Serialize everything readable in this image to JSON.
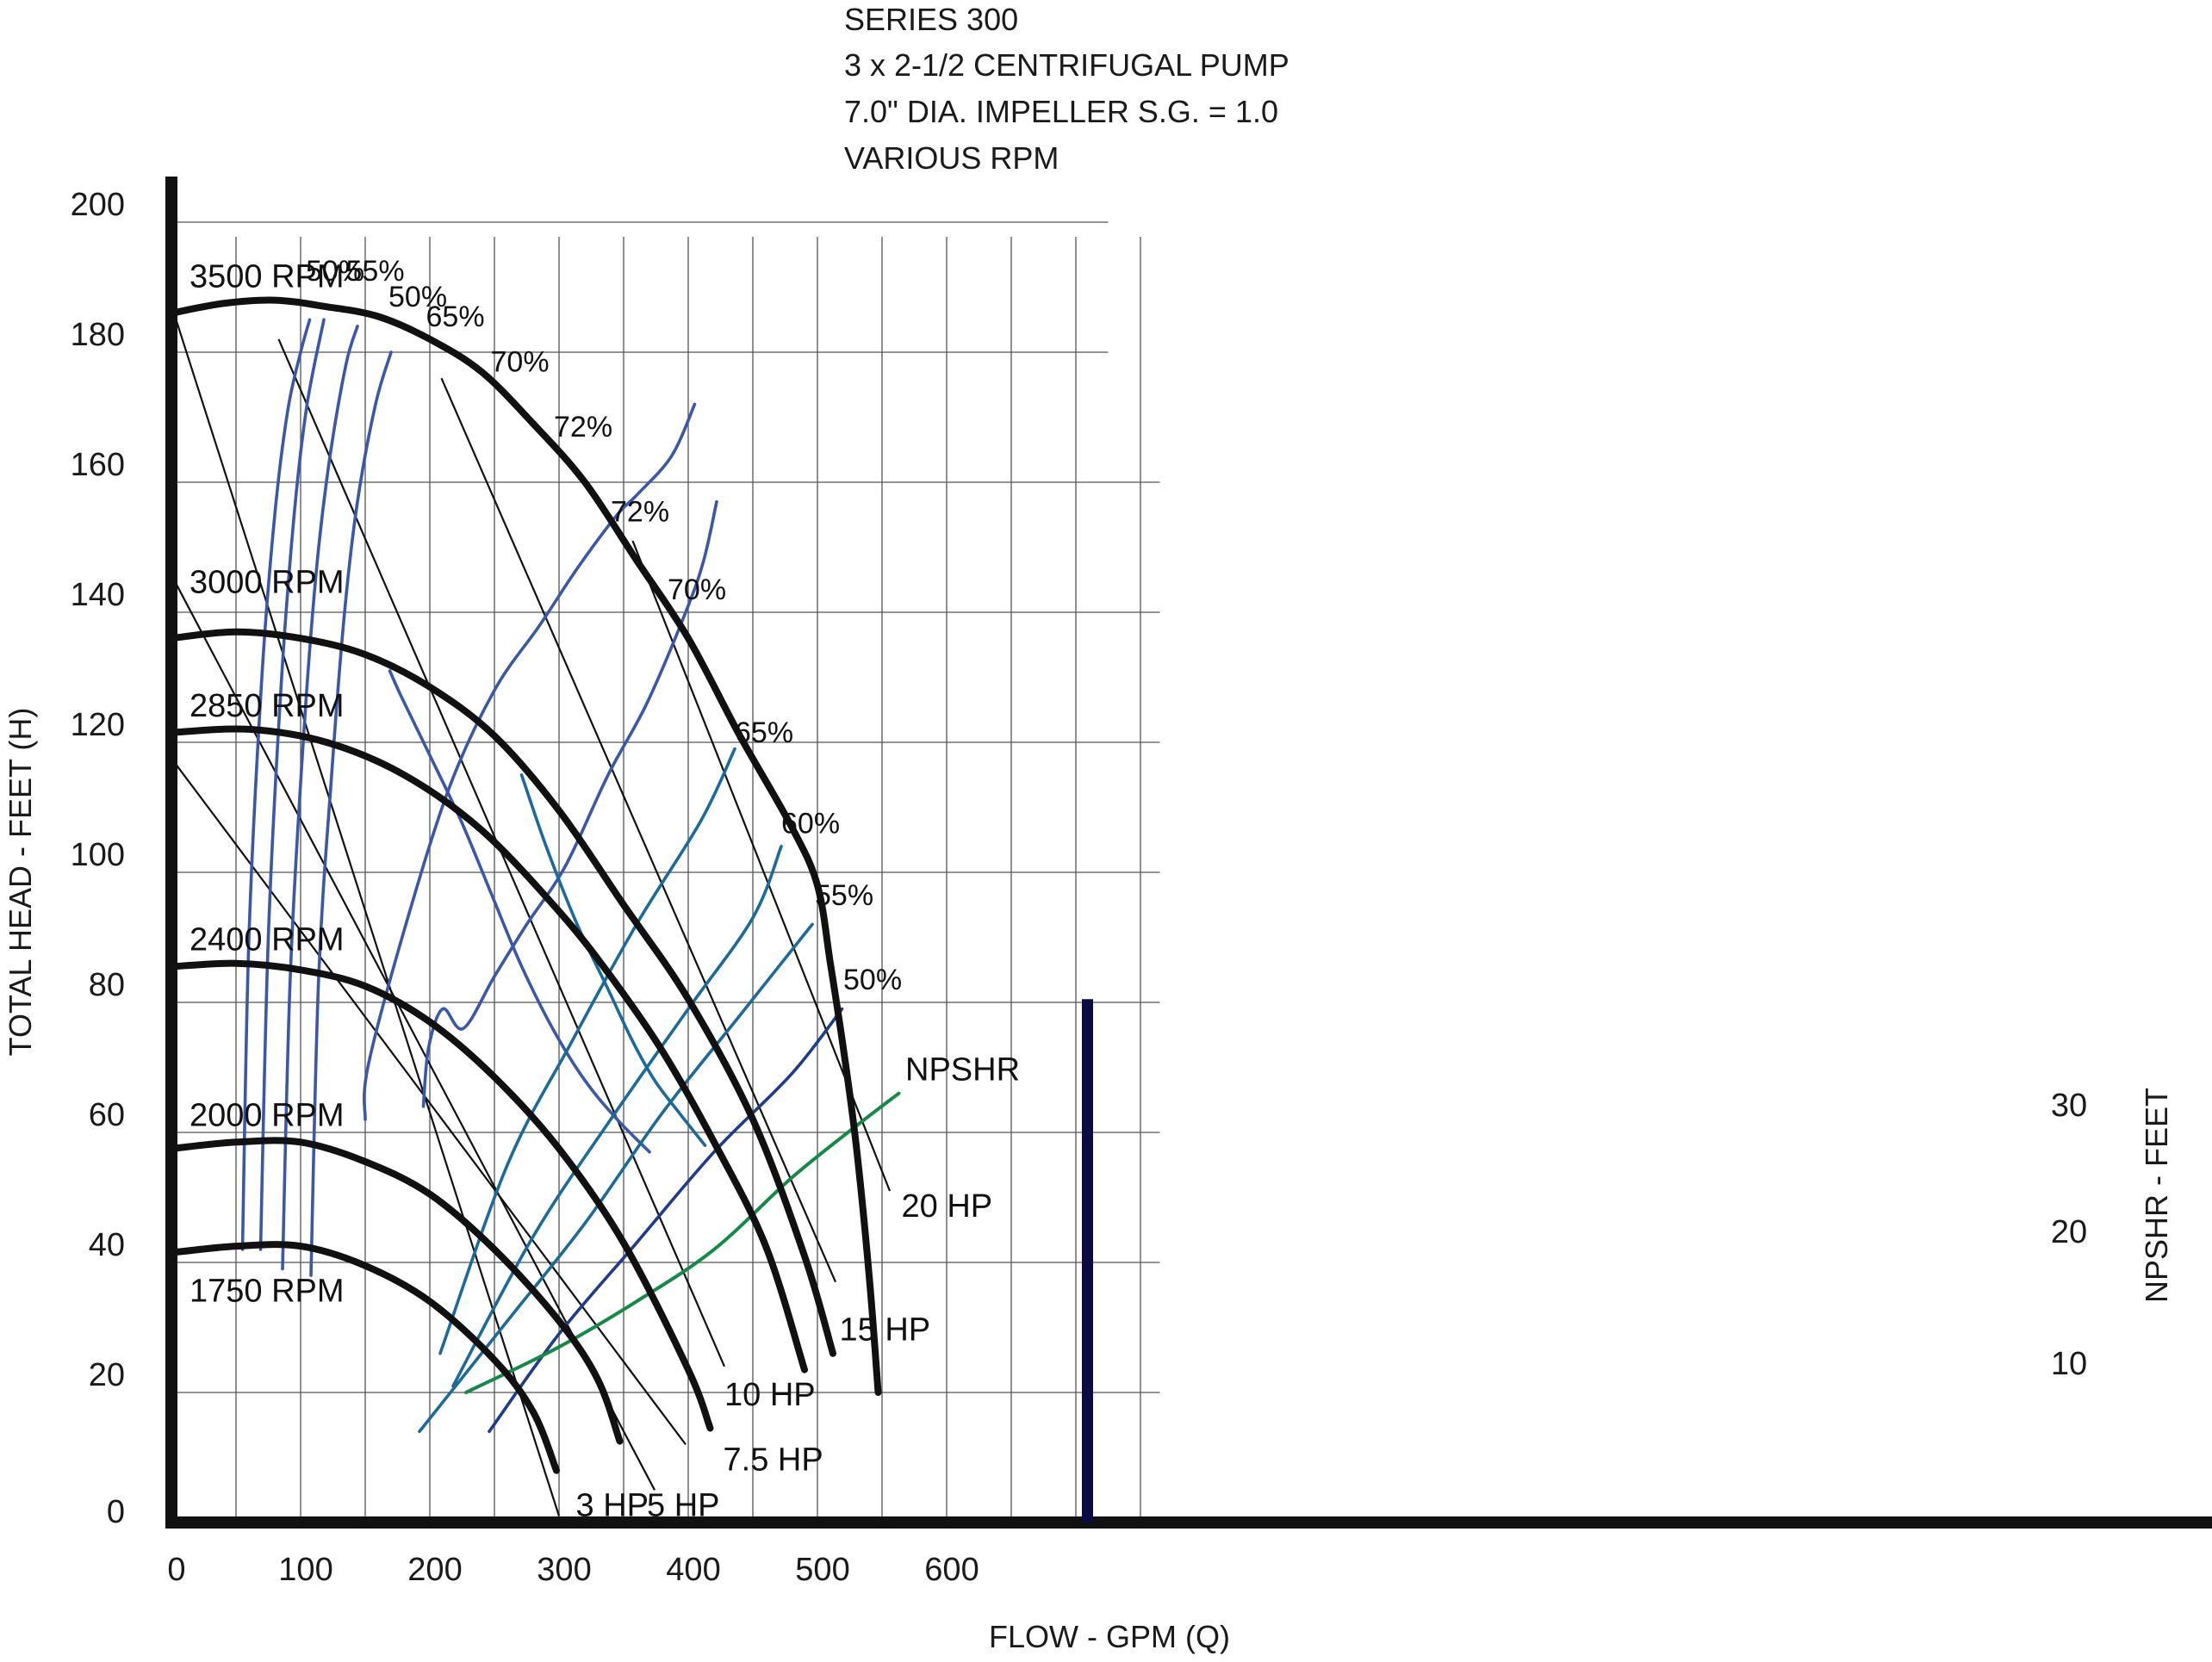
{
  "chart_data": {
    "type": "line",
    "title_lines": [
      "SERIES 300",
      "3 x 2-1/2 CENTRIFUGAL PUMP",
      "7.0\" DIA. IMPELLER S.G. = 1.0",
      "VARIOUS RPM"
    ],
    "xlabel": "FLOW - GPM (Q)",
    "ylabel": "TOTAL HEAD - FEET (H)",
    "y2label": "NPSHR - FEET",
    "xlim": [
      0,
      785
    ],
    "ylim": [
      0,
      200
    ],
    "x_ticks": [
      "0",
      "100",
      "200",
      "300",
      "400",
      "500",
      "600"
    ],
    "x_tick_values": [
      0,
      100,
      200,
      300,
      400,
      500,
      600
    ],
    "y_ticks": [
      "200",
      "180",
      "160",
      "140",
      "120",
      "100",
      "80",
      "60",
      "40",
      "20",
      "0"
    ],
    "y_tick_values": [
      200,
      180,
      160,
      140,
      120,
      100,
      80,
      60,
      40,
      20,
      0
    ],
    "y2_ticks": [
      "30",
      "20",
      "10"
    ],
    "y2_tick_values": [
      30,
      20,
      10
    ],
    "grid": true,
    "colors": {
      "rpm": "#111111",
      "hp": "#111111",
      "eff_left": "#3a57a8",
      "eff_right": "#1a6a9a",
      "eff_far": "#1f3b8c",
      "npshr": "#138a45",
      "axis": "#111111",
      "y2_axis": "#0b0b40",
      "grid": "#555555"
    },
    "rpm_curves": [
      {
        "name": "3500 RPM",
        "x": [
          0,
          40,
          80,
          120,
          160,
          200,
          240,
          280,
          320,
          360,
          400,
          440,
          480,
          500,
          510,
          520,
          530,
          540,
          547
        ],
        "y": [
          186,
          187.5,
          188,
          187,
          185.5,
          182,
          177,
          169,
          160,
          148,
          136,
          121,
          107,
          98,
          86,
          73,
          58,
          38,
          20
        ]
      },
      {
        "name": "3000 RPM",
        "x": [
          0,
          50,
          100,
          150,
          200,
          250,
          300,
          350,
          400,
          450,
          490,
          512
        ],
        "y": [
          136,
          137,
          136,
          133.5,
          128.5,
          121,
          109.5,
          95,
          80.5,
          62,
          41,
          26
        ]
      },
      {
        "name": "2850 RPM",
        "x": [
          0,
          60,
          120,
          180,
          240,
          300,
          340,
          380,
          420,
          460,
          490
        ],
        "y": [
          121.5,
          122,
          120,
          115,
          106.5,
          94,
          84,
          72.5,
          58.5,
          42.5,
          23.5
        ]
      },
      {
        "name": "2400 RPM",
        "x": [
          0,
          50,
          100,
          150,
          200,
          250,
          300,
          350,
          400,
          417
        ],
        "y": [
          85.5,
          86,
          85,
          82.5,
          77,
          68.5,
          57.5,
          43,
          23.5,
          14.5
        ]
      },
      {
        "name": "2000 RPM",
        "x": [
          0,
          50,
          100,
          150,
          200,
          250,
          300,
          330,
          347
        ],
        "y": [
          57.5,
          58.5,
          58.5,
          55.5,
          50.5,
          42,
          31,
          22,
          12.5
        ]
      },
      {
        "name": "1750 RPM",
        "x": [
          0,
          50,
          100,
          150,
          200,
          250,
          280,
          298
        ],
        "y": [
          41.5,
          42.5,
          42.5,
          39.5,
          34,
          25,
          17,
          8
        ]
      }
    ],
    "hp_lines": [
      {
        "name": "3 HP",
        "x": [
          2,
          300
        ],
        "y": [
          186,
          1
        ]
      },
      {
        "name": "5 HP",
        "x": [
          2,
          374
        ],
        "y": [
          145,
          5
        ]
      },
      {
        "name": "7.5 HP",
        "x": [
          2,
          398
        ],
        "y": [
          117,
          12
        ]
      },
      {
        "name": "10 HP",
        "x": [
          83,
          428
        ],
        "y": [
          182,
          24
        ]
      },
      {
        "name": "15 HP",
        "x": [
          209,
          514
        ],
        "y": [
          176,
          37
        ]
      },
      {
        "name": "20 HP",
        "x": [
          357,
          556
        ],
        "y": [
          151,
          51
        ]
      }
    ],
    "efficiency_curves": [
      {
        "name": "50%",
        "x": [
          55,
          60,
          70,
          80,
          90,
          100,
          107
        ],
        "y": [
          42,
          90,
          130,
          155,
          171,
          180,
          185
        ]
      },
      {
        "name": "55%",
        "x": [
          69,
          75,
          85,
          95,
          105,
          118
        ],
        "y": [
          42,
          90,
          129,
          155,
          172,
          185
        ]
      },
      {
        "name": "50%",
        "x": [
          86,
          92,
          102,
          112,
          122,
          135,
          144
        ],
        "y": [
          39,
          84,
          120,
          146,
          163,
          178,
          184
        ]
      },
      {
        "name": "65%",
        "x": [
          108,
          114,
          124,
          134,
          144,
          158,
          170
        ],
        "y": [
          38,
          84,
          115,
          140,
          157,
          172,
          180
        ]
      },
      {
        "name": "70%",
        "x": [
          150,
          152,
          180,
          215,
          250,
          285,
          315,
          345,
          360,
          387,
          405
        ],
        "y": [
          62,
          70,
          91,
          113,
          128,
          138,
          147,
          155,
          158,
          164,
          172
        ]
      },
      {
        "name": "72%",
        "x": [
          195,
          199,
          210,
          226,
          250,
          275,
          305,
          338,
          368,
          398,
          412,
          422
        ],
        "y": [
          64,
          73,
          79,
          76,
          84,
          92,
          101,
          115,
          126,
          140,
          148,
          157
        ]
      },
      {
        "name": "72%",
        "x": [
          169,
          178,
          200,
          224,
          247,
          270,
          295,
          320,
          345,
          370
        ],
        "y": [
          131,
          127,
          118,
          108,
          97,
          86,
          76,
          68,
          62,
          57
        ]
      },
      {
        "name": "70%",
        "x": [
          271,
          290,
          314,
          338,
          357,
          374,
          393,
          413
        ],
        "y": [
          115,
          104,
          92,
          82,
          74,
          68,
          63,
          58
        ]
      }
    ],
    "power_efficiency_lines": [
      {
        "name": "65%",
        "x": [
          208,
          260,
          310,
          360,
          410,
          436
        ],
        "y": [
          26,
          55,
          74,
          92,
          108,
          119
        ]
      },
      {
        "name": "60%",
        "x": [
          218,
          280,
          340,
          400,
          450,
          472
        ],
        "y": [
          21,
          44,
          62,
          79,
          93,
          104
        ]
      },
      {
        "name": "55%",
        "x": [
          192,
          260,
          320,
          380,
          440,
          496
        ],
        "y": [
          14,
          31,
          46,
          63,
          78,
          92
        ]
      },
      {
        "name": "50%",
        "x": [
          246,
          300,
          360,
          420,
          480,
          519
        ],
        "y": [
          14,
          29,
          43,
          57,
          69,
          79
        ]
      }
    ],
    "npshr": {
      "name": "NPSHR",
      "x": [
        228,
        300,
        360,
        420,
        480,
        530,
        563
      ],
      "y": [
        20,
        27,
        34,
        42,
        53,
        61,
        66
      ]
    }
  },
  "labels": {
    "rpm": [
      {
        "text": "3500 RPM",
        "x": 2,
        "y": 190
      },
      {
        "text": "3000 RPM",
        "x": 2,
        "y": 143
      },
      {
        "text": "2850 RPM",
        "x": 2,
        "y": 124
      },
      {
        "text": "2400 RPM",
        "x": 2,
        "y": 88
      },
      {
        "text": "2000 RPM",
        "x": 2,
        "y": 61
      },
      {
        "text": "1750 RPM",
        "x": 2,
        "y": 34
      }
    ],
    "hp": [
      {
        "text": "3 HP",
        "x": 313,
        "y": 1
      },
      {
        "text": "5 HP",
        "x": 368,
        "y": 1
      },
      {
        "text": "7.5 HP",
        "x": 427,
        "y": 8
      },
      {
        "text": "10 HP",
        "x": 428,
        "y": 18
      },
      {
        "text": "15 HP",
        "x": 517,
        "y": 28
      },
      {
        "text": "20 HP",
        "x": 565,
        "y": 47
      }
    ],
    "efficiency": [
      {
        "text": "50%",
        "x": 104,
        "y": 191
      },
      {
        "text": "55%",
        "x": 135,
        "y": 191
      },
      {
        "text": "50%",
        "x": 168,
        "y": 187
      },
      {
        "text": "65%",
        "x": 197,
        "y": 184
      },
      {
        "text": "70%",
        "x": 247,
        "y": 177
      },
      {
        "text": "72%",
        "x": 296,
        "y": 167
      },
      {
        "text": "72%",
        "x": 340,
        "y": 154
      },
      {
        "text": "70%",
        "x": 384,
        "y": 142
      },
      {
        "text": "65%",
        "x": 436,
        "y": 120
      },
      {
        "text": "60%",
        "x": 472,
        "y": 106
      },
      {
        "text": "55%",
        "x": 498,
        "y": 95
      },
      {
        "text": "50%",
        "x": 520,
        "y": 82
      }
    ],
    "npshr": {
      "text": "NPSHR",
      "x": 568,
      "y": 68
    }
  }
}
